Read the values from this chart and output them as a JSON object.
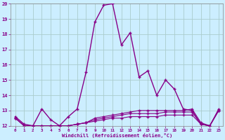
{
  "xlabel": "Windchill (Refroidissement éolien,°C)",
  "background_color": "#cceeff",
  "grid_color": "#aacccc",
  "line_color": "#880088",
  "x": [
    0,
    1,
    2,
    3,
    4,
    5,
    6,
    7,
    8,
    9,
    10,
    11,
    12,
    13,
    14,
    15,
    16,
    17,
    18,
    19,
    20,
    21,
    22,
    23
  ],
  "y_main": [
    12.6,
    12.1,
    12.0,
    13.1,
    12.4,
    12.0,
    12.6,
    13.1,
    15.5,
    18.8,
    19.9,
    20.0,
    17.3,
    18.1,
    15.2,
    15.6,
    14.0,
    15.0,
    14.4,
    13.1,
    13.0,
    12.1,
    12.0,
    13.0
  ],
  "y_low1": [
    12.5,
    12.0,
    12.0,
    12.0,
    12.0,
    12.0,
    12.0,
    12.1,
    12.2,
    12.3,
    12.4,
    12.5,
    12.5,
    12.6,
    12.6,
    12.6,
    12.6,
    12.7,
    12.7,
    12.7,
    12.7,
    12.1,
    12.0,
    13.0
  ],
  "y_low2": [
    12.5,
    12.0,
    12.0,
    12.0,
    12.0,
    12.0,
    12.0,
    12.1,
    12.2,
    12.4,
    12.5,
    12.6,
    12.7,
    12.8,
    12.8,
    12.8,
    12.8,
    12.9,
    12.9,
    12.9,
    12.9,
    12.1,
    12.0,
    13.0
  ],
  "y_low3": [
    12.5,
    12.0,
    12.0,
    12.0,
    12.0,
    12.0,
    12.0,
    12.1,
    12.2,
    12.5,
    12.6,
    12.7,
    12.8,
    12.9,
    13.0,
    13.0,
    13.0,
    13.0,
    13.0,
    13.0,
    13.1,
    12.2,
    12.0,
    13.1
  ],
  "ylim": [
    12,
    20
  ],
  "xlim": [
    -0.5,
    23.5
  ],
  "yticks": [
    12,
    13,
    14,
    15,
    16,
    17,
    18,
    19,
    20
  ],
  "xticks": [
    0,
    1,
    2,
    3,
    4,
    5,
    6,
    7,
    8,
    9,
    10,
    11,
    12,
    13,
    14,
    15,
    16,
    17,
    18,
    19,
    20,
    21,
    22,
    23
  ]
}
